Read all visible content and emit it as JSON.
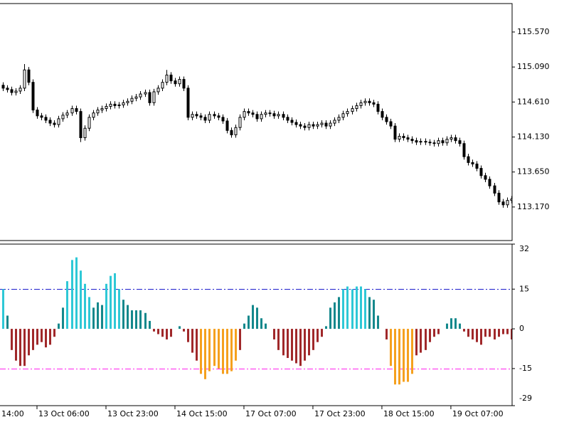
{
  "chart_data": [
    {
      "type": "candlestick",
      "xlim": [
        -0.58,
        118.2
      ],
      "ylim": [
        112.71,
        115.96
      ],
      "yticks": [
        {
          "value": 115.57,
          "label": "115.570"
        },
        {
          "value": 115.09,
          "label": "115.090"
        },
        {
          "value": 114.61,
          "label": "114.610"
        },
        {
          "value": 114.13,
          "label": "114.130"
        },
        {
          "value": 113.65,
          "label": "113.650"
        },
        {
          "value": 113.17,
          "label": "113.170"
        }
      ],
      "up_color": "#ffffff",
      "down_color": "#000000",
      "line_color": "#000000",
      "open": [
        114.84,
        114.8,
        114.78,
        114.74,
        114.76,
        114.8,
        115.05,
        114.88,
        114.5,
        114.42,
        114.4,
        114.36,
        114.32,
        114.3,
        114.38,
        114.43,
        114.46,
        114.52,
        114.48,
        114.12,
        114.25,
        114.4,
        114.46,
        114.5,
        114.52,
        114.55,
        114.58,
        114.56,
        114.57,
        114.6,
        114.62,
        114.66,
        114.68,
        114.72,
        114.74,
        114.6,
        114.75,
        114.8,
        114.88,
        114.98,
        114.9,
        114.86,
        114.92,
        114.8,
        114.4,
        114.44,
        114.42,
        114.4,
        114.36,
        114.44,
        114.42,
        114.4,
        114.35,
        114.22,
        114.16,
        114.26,
        114.4,
        114.48,
        114.46,
        114.44,
        114.38,
        114.44,
        114.46,
        114.45,
        114.42,
        114.44,
        114.4,
        114.36,
        114.33,
        114.3,
        114.28,
        114.26,
        114.3,
        114.28,
        114.3,
        114.32,
        114.28,
        114.32,
        114.36,
        114.4,
        114.45,
        114.48,
        114.52,
        114.56,
        114.6,
        114.62,
        114.6,
        114.58,
        114.48,
        114.4,
        114.34,
        114.28,
        114.1,
        114.14,
        114.12,
        114.1,
        114.08,
        114.06,
        114.07,
        114.06,
        114.05,
        114.04,
        114.08,
        114.05,
        114.1,
        114.12,
        114.08,
        114.04,
        113.86,
        113.78,
        113.76,
        113.7,
        113.6,
        113.55,
        113.46,
        113.36,
        113.24,
        113.2,
        113.26
      ],
      "high": [
        114.88,
        114.84,
        114.82,
        114.8,
        114.84,
        115.13,
        115.09,
        114.92,
        114.54,
        114.46,
        114.44,
        114.4,
        114.36,
        114.42,
        114.47,
        114.5,
        114.56,
        114.56,
        114.52,
        114.29,
        114.44,
        114.5,
        114.54,
        114.56,
        114.59,
        114.62,
        114.62,
        114.61,
        114.64,
        114.66,
        114.7,
        114.72,
        114.76,
        114.78,
        114.78,
        114.79,
        114.84,
        114.92,
        115.05,
        115.02,
        114.94,
        114.96,
        114.96,
        114.84,
        114.48,
        114.48,
        114.46,
        114.44,
        114.48,
        114.48,
        114.46,
        114.44,
        114.39,
        114.26,
        114.3,
        114.44,
        114.52,
        114.52,
        114.5,
        114.48,
        114.48,
        114.5,
        114.5,
        114.49,
        114.48,
        114.48,
        114.44,
        114.4,
        114.37,
        114.34,
        114.32,
        114.34,
        114.34,
        114.34,
        114.36,
        114.36,
        114.36,
        114.4,
        114.44,
        114.49,
        114.52,
        114.56,
        114.6,
        114.64,
        114.66,
        114.66,
        114.64,
        114.62,
        114.52,
        114.44,
        114.38,
        114.32,
        114.18,
        114.18,
        114.16,
        114.14,
        114.12,
        114.11,
        114.11,
        114.1,
        114.09,
        114.12,
        114.12,
        114.14,
        114.16,
        114.16,
        114.12,
        114.08,
        113.9,
        113.82,
        113.8,
        113.74,
        113.64,
        113.59,
        113.5,
        113.4,
        113.28,
        113.3,
        113.32
      ],
      "low": [
        114.76,
        114.74,
        114.7,
        114.7,
        114.72,
        114.76,
        114.84,
        114.46,
        114.38,
        114.36,
        114.32,
        114.28,
        114.26,
        114.26,
        114.34,
        114.39,
        114.42,
        114.44,
        114.06,
        114.08,
        114.21,
        114.36,
        114.42,
        114.46,
        114.48,
        114.51,
        114.52,
        114.52,
        114.53,
        114.56,
        114.58,
        114.62,
        114.64,
        114.68,
        114.56,
        114.56,
        114.71,
        114.76,
        114.84,
        114.86,
        114.82,
        114.82,
        114.76,
        114.36,
        114.36,
        114.38,
        114.36,
        114.32,
        114.32,
        114.38,
        114.36,
        114.31,
        114.18,
        114.12,
        114.12,
        114.22,
        114.36,
        114.42,
        114.4,
        114.34,
        114.34,
        114.4,
        114.41,
        114.38,
        114.38,
        114.36,
        114.32,
        114.29,
        114.26,
        114.24,
        114.22,
        114.22,
        114.24,
        114.24,
        114.26,
        114.24,
        114.24,
        114.28,
        114.32,
        114.36,
        114.41,
        114.44,
        114.48,
        114.52,
        114.56,
        114.56,
        114.54,
        114.44,
        114.36,
        114.3,
        114.24,
        114.06,
        114.06,
        114.08,
        114.06,
        114.04,
        114.02,
        114.02,
        114.02,
        114.01,
        114.0,
        114.0,
        114.01,
        114.01,
        114.06,
        114.04,
        114.0,
        113.82,
        113.74,
        113.72,
        113.66,
        113.56,
        113.51,
        113.42,
        113.32,
        113.2,
        113.16,
        113.16,
        113.22
      ],
      "close": [
        114.8,
        114.78,
        114.74,
        114.76,
        114.8,
        115.05,
        114.88,
        114.5,
        114.42,
        114.4,
        114.36,
        114.32,
        114.3,
        114.38,
        114.43,
        114.46,
        114.52,
        114.48,
        114.12,
        114.25,
        114.4,
        114.46,
        114.5,
        114.52,
        114.55,
        114.58,
        114.56,
        114.57,
        114.6,
        114.62,
        114.66,
        114.68,
        114.72,
        114.74,
        114.6,
        114.75,
        114.8,
        114.88,
        114.98,
        114.9,
        114.86,
        114.92,
        114.8,
        114.4,
        114.44,
        114.42,
        114.4,
        114.36,
        114.44,
        114.42,
        114.4,
        114.35,
        114.22,
        114.16,
        114.26,
        114.4,
        114.48,
        114.46,
        114.44,
        114.38,
        114.44,
        114.46,
        114.45,
        114.42,
        114.44,
        114.4,
        114.36,
        114.33,
        114.3,
        114.28,
        114.26,
        114.3,
        114.28,
        114.3,
        114.32,
        114.28,
        114.32,
        114.36,
        114.4,
        114.45,
        114.48,
        114.52,
        114.56,
        114.6,
        114.62,
        114.6,
        114.58,
        114.48,
        114.4,
        114.34,
        114.28,
        114.1,
        114.14,
        114.12,
        114.1,
        114.08,
        114.06,
        114.07,
        114.06,
        114.05,
        114.04,
        114.08,
        114.05,
        114.1,
        114.12,
        114.08,
        114.04,
        113.86,
        113.78,
        113.76,
        113.7,
        113.6,
        113.55,
        113.46,
        113.36,
        113.24,
        113.2,
        113.26,
        113.28
      ]
    },
    {
      "type": "histogram",
      "xlim": [
        -0.58,
        118.2
      ],
      "ylim": [
        -29,
        32
      ],
      "yticks": [
        32,
        15,
        0,
        -15,
        -29
      ],
      "xticks": [
        {
          "value": -8,
          "label": "14:00"
        },
        {
          "value": 8,
          "label": "13 Oct 06:00"
        },
        {
          "value": 24,
          "label": "13 Oct 23:00"
        },
        {
          "value": 40,
          "label": "14 Oct 15:00"
        },
        {
          "value": 56,
          "label": "17 Oct 07:00"
        },
        {
          "value": 72,
          "label": "17 Oct 23:00"
        },
        {
          "value": 88,
          "label": "18 Oct 15:00"
        },
        {
          "value": 104,
          "label": "19 Oct 07:00"
        }
      ],
      "levels": [
        {
          "value": 15,
          "color": "#1c1ccc"
        },
        {
          "value": -15,
          "color": "#ff22ee"
        }
      ],
      "values": [
        15,
        5,
        -8,
        -12,
        -14,
        -14,
        -10,
        -8,
        -6,
        -5,
        -7,
        -6,
        -3,
        2,
        8,
        18,
        26,
        27,
        22,
        17,
        12,
        8,
        10,
        9,
        17,
        20,
        21,
        15,
        11,
        9,
        7,
        7,
        7,
        6,
        3,
        -1,
        -2,
        -3,
        -4,
        -3,
        0,
        1,
        -1,
        -5,
        -9,
        -12,
        -17,
        -19,
        -16,
        -14,
        -15,
        -17,
        -17,
        -16,
        -12,
        -8,
        2,
        5,
        9,
        8,
        4,
        2,
        0,
        -4,
        -8,
        -10,
        -11,
        -12,
        -13,
        -14,
        -12,
        -10,
        -8,
        -5,
        -3,
        1,
        8,
        10,
        12,
        15,
        16,
        15,
        16,
        16,
        15,
        12,
        11,
        5,
        0,
        -4,
        -14,
        -21,
        -21,
        -20,
        -20,
        -17,
        -10,
        -9,
        -8,
        -5,
        -3,
        -2,
        0,
        2,
        4,
        4,
        2,
        -1,
        -3,
        -4,
        -5,
        -6,
        -3,
        -3,
        -4,
        -3,
        -2,
        -2,
        -4
      ],
      "colors": [
        "#2ec8d6",
        "#14888c",
        "#a0282a",
        "#a0282a",
        "#a0282a",
        "#a0282a",
        "#a0282a",
        "#a0282a",
        "#a0282a",
        "#a0282a",
        "#a0282a",
        "#a0282a",
        "#a0282a",
        "#14888c",
        "#14888c",
        "#2ec8d6",
        "#2ec8d6",
        "#2ec8d6",
        "#2ec8d6",
        "#2ec8d6",
        "#2ec8d6",
        "#14888c",
        "#14888c",
        "#14888c",
        "#2ec8d6",
        "#2ec8d6",
        "#2ec8d6",
        "#2ec8d6",
        "#14888c",
        "#14888c",
        "#14888c",
        "#14888c",
        "#14888c",
        "#14888c",
        "#14888c",
        "#a0282a",
        "#a0282a",
        "#a0282a",
        "#a0282a",
        "#a0282a",
        "#14888c",
        "#14888c",
        "#a0282a",
        "#a0282a",
        "#a0282a",
        "#a0282a",
        "#f5a01e",
        "#f5a01e",
        "#f5a01e",
        "#f5a01e",
        "#f5a01e",
        "#f5a01e",
        "#f5a01e",
        "#f5a01e",
        "#f5a01e",
        "#a0282a",
        "#14888c",
        "#14888c",
        "#14888c",
        "#14888c",
        "#14888c",
        "#14888c",
        "#14888c",
        "#a0282a",
        "#a0282a",
        "#a0282a",
        "#a0282a",
        "#a0282a",
        "#a0282a",
        "#a0282a",
        "#a0282a",
        "#a0282a",
        "#a0282a",
        "#a0282a",
        "#a0282a",
        "#14888c",
        "#14888c",
        "#14888c",
        "#14888c",
        "#2ec8d6",
        "#2ec8d6",
        "#2ec8d6",
        "#2ec8d6",
        "#2ec8d6",
        "#2ec8d6",
        "#14888c",
        "#14888c",
        "#14888c",
        "#14888c",
        "#a0282a",
        "#f5a01e",
        "#f5a01e",
        "#f5a01e",
        "#f5a01e",
        "#f5a01e",
        "#f5a01e",
        "#a0282a",
        "#a0282a",
        "#a0282a",
        "#a0282a",
        "#a0282a",
        "#a0282a",
        "#14888c",
        "#14888c",
        "#14888c",
        "#14888c",
        "#14888c",
        "#a0282a",
        "#a0282a",
        "#a0282a",
        "#a0282a",
        "#a0282a",
        "#a0282a",
        "#a0282a",
        "#a0282a",
        "#a0282a",
        "#a0282a",
        "#a0282a",
        "#a0282a"
      ]
    }
  ]
}
